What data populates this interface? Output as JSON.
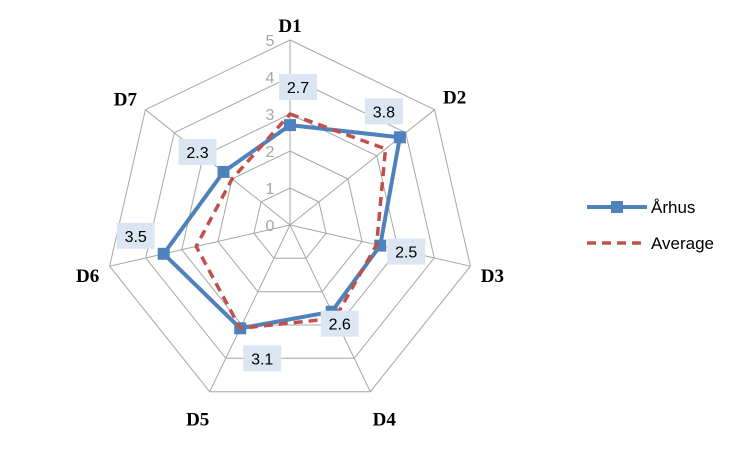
{
  "chart_data": {
    "type": "radar",
    "categories": [
      "D1",
      "D2",
      "D3",
      "D4",
      "D5",
      "D6",
      "D7"
    ],
    "rlim": [
      0,
      5
    ],
    "ticks": [
      "0",
      "1",
      "2",
      "3",
      "4",
      "5"
    ],
    "grid": true,
    "legend_position": "right",
    "series": [
      {
        "name": "Århus",
        "values": [
          2.7,
          3.8,
          2.5,
          2.6,
          3.1,
          3.5,
          2.3
        ],
        "color": "#4f81bd",
        "marker": "square",
        "data_labels": [
          "2.7",
          "3.8",
          "2.5",
          "2.6",
          "3.1",
          "3.5",
          "2.3"
        ]
      },
      {
        "name": "Average",
        "values": [
          3.0,
          3.3,
          2.4,
          2.8,
          3.1,
          2.6,
          2.0
        ],
        "color": "#c0504d",
        "dash": true
      }
    ]
  }
}
